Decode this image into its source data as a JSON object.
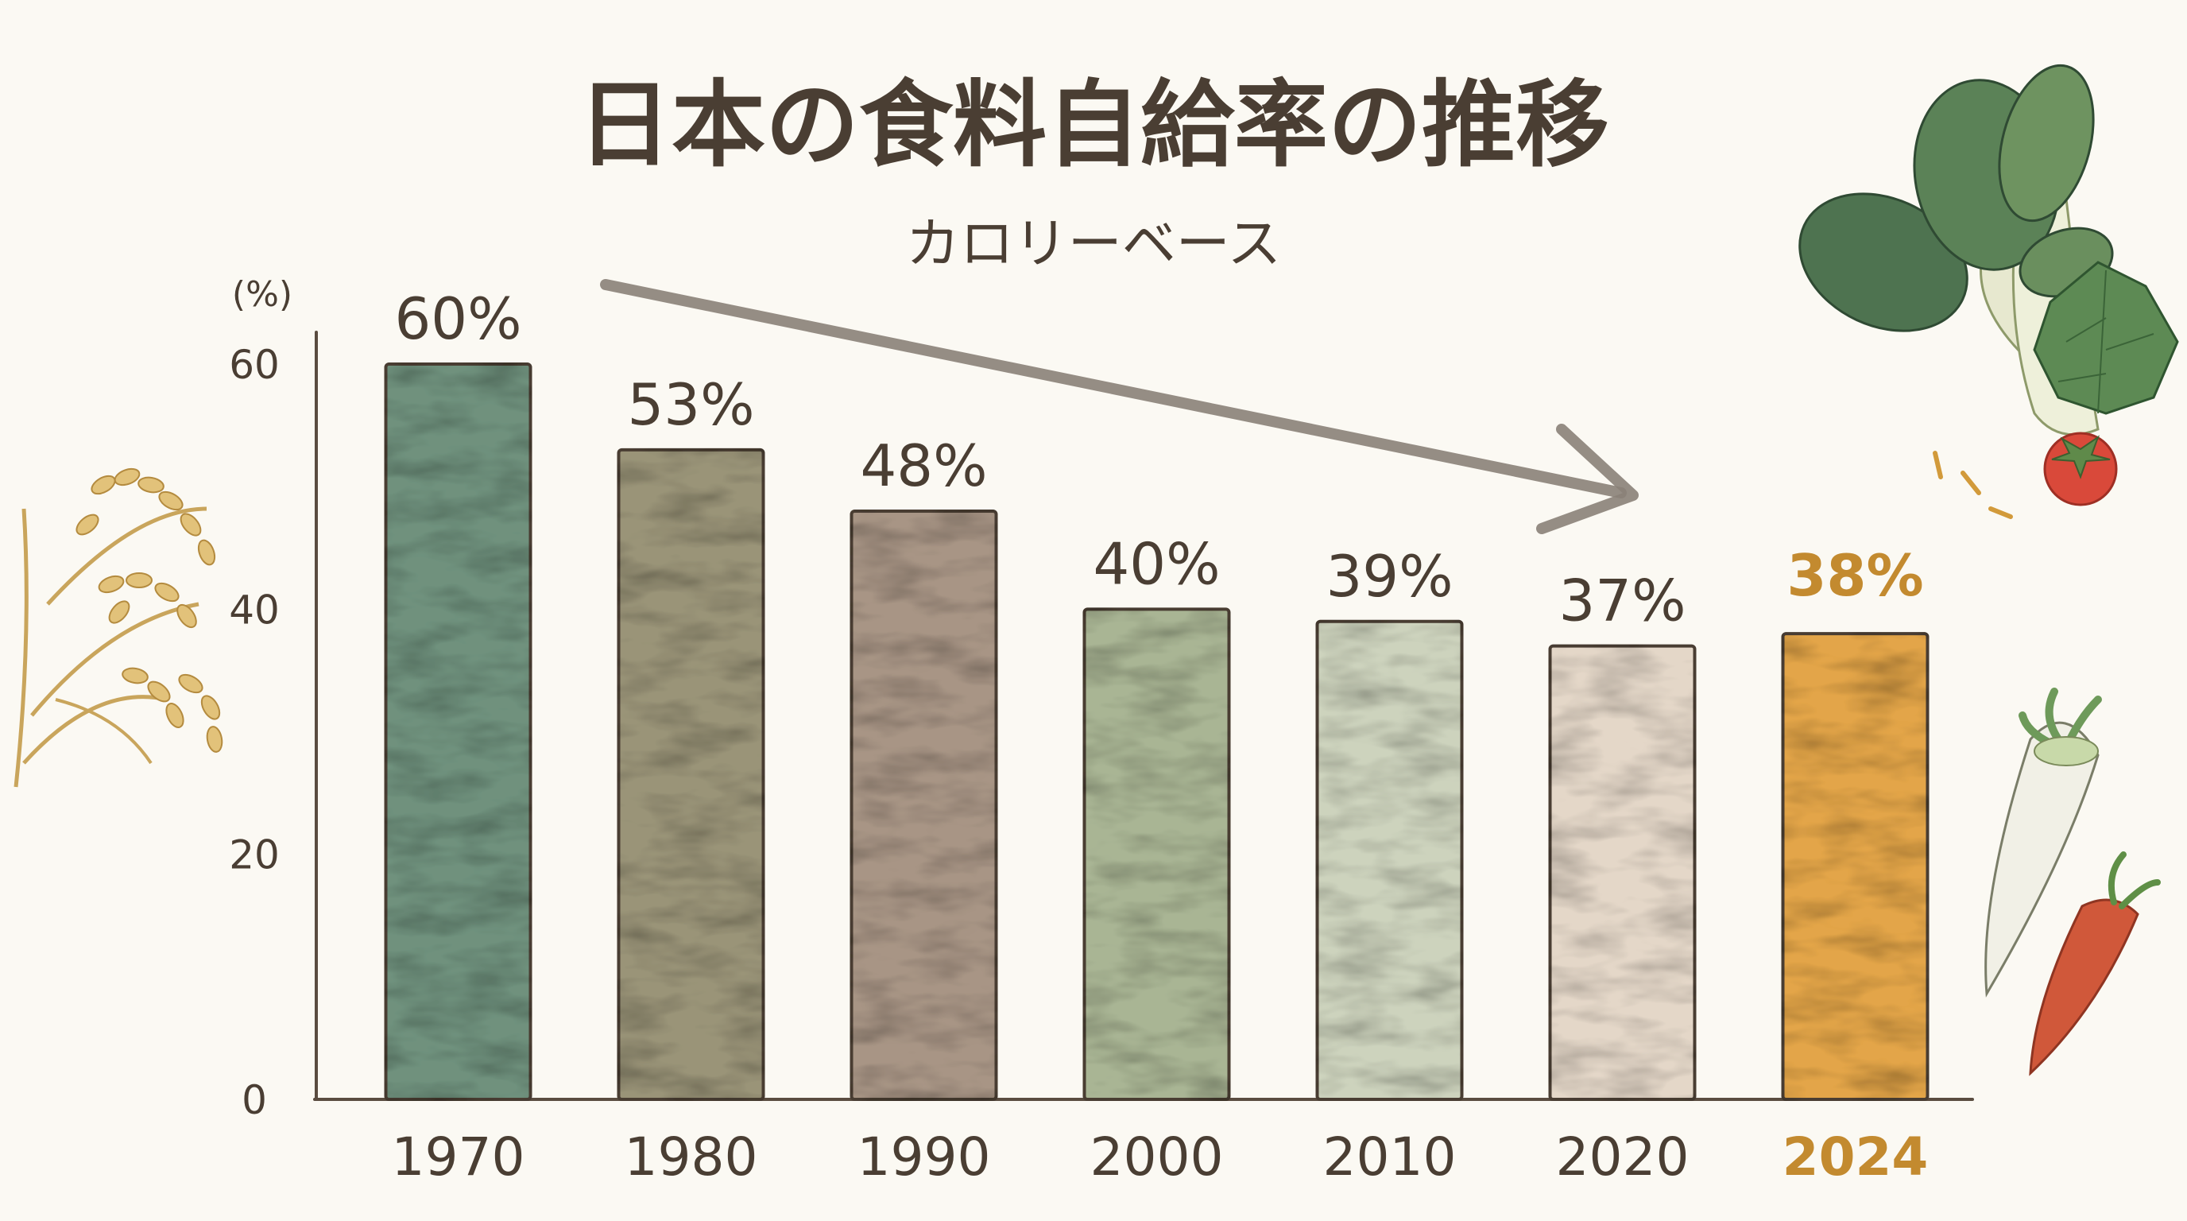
{
  "title": "日本の食料自給率の推移",
  "subtitle": "カロリーベース",
  "chart_data": {
    "type": "bar",
    "title": "日本の食料自給率の推移",
    "subtitle": "カロリーベース",
    "categories": [
      "1970",
      "1980",
      "1990",
      "2000",
      "2010",
      "2020",
      "2024"
    ],
    "values": [
      60,
      53,
      48,
      40,
      39,
      37,
      38
    ],
    "value_labels": [
      "60%",
      "53%",
      "48%",
      "40%",
      "39%",
      "37%",
      "38%"
    ],
    "y_unit": "(%)",
    "y_ticks": [
      "0",
      "20",
      "40",
      "60"
    ],
    "ylim": [
      0,
      60
    ],
    "grid": false,
    "legend": "none",
    "highlight_index": 6,
    "trend_arrow": "downward, from 1970 toward 2020",
    "bar_colors": [
      "#6f917d",
      "#9a9478",
      "#a89585",
      "#a9b594",
      "#cdd3bd",
      "#e4d7c8",
      "#e3a548"
    ],
    "highlight_color": "#c38a2f",
    "text_color": "#4a3e33"
  },
  "decorations": [
    "rice-stalk-icon",
    "leafy-greens-icon",
    "tomato-icon",
    "daikon-radish-icon",
    "carrot-icon"
  ]
}
